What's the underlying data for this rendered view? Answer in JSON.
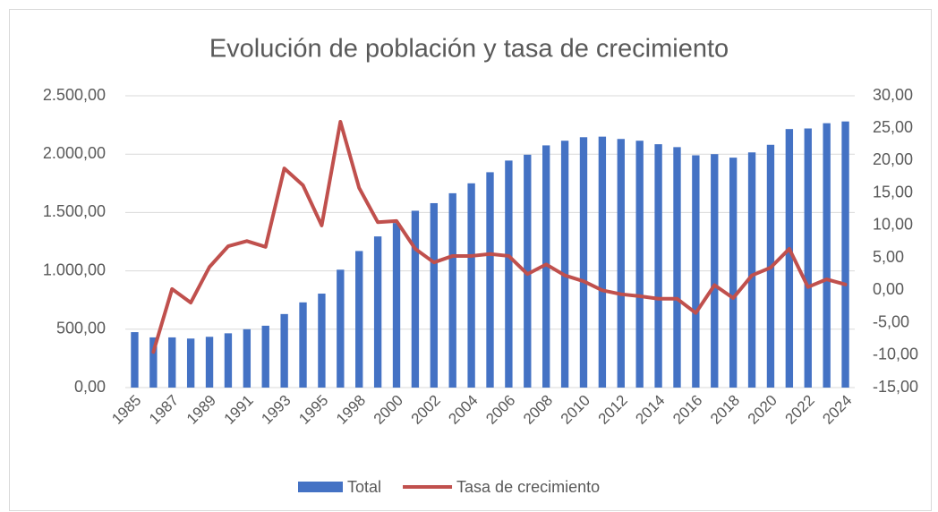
{
  "chart_data": {
    "type": "bar",
    "title": "Evolución de población y tasa de crecimiento",
    "categories": [
      "1985",
      null,
      "1987",
      null,
      "1989",
      null,
      "1991",
      null,
      "1993",
      null,
      "1995",
      null,
      "1998",
      null,
      "2000",
      null,
      "2002",
      null,
      "2004",
      null,
      "2006",
      null,
      "2008",
      null,
      "2010",
      null,
      "2012",
      null,
      "2014",
      null,
      "2016",
      null,
      "2018",
      null,
      "2020",
      null,
      "2022",
      null,
      "2024"
    ],
    "series": [
      {
        "name": "Total",
        "type": "bar",
        "color": "#4472c4",
        "values": [
          475,
          430,
          430,
          420,
          435,
          465,
          500,
          530,
          630,
          730,
          805,
          1010,
          1170,
          1295,
          1410,
          1515,
          1580,
          1665,
          1750,
          1845,
          1945,
          1995,
          2075,
          2115,
          2145,
          2150,
          2130,
          2115,
          2085,
          2060,
          1990,
          2000,
          1970,
          2015,
          2080,
          2215,
          2220,
          2265,
          2280
        ]
      },
      {
        "name": "Tasa de crecimiento",
        "type": "line",
        "color": "#c0504d",
        "axis": "y2",
        "values": [
          null,
          -9.5,
          0.2,
          -1.9,
          3.6,
          6.8,
          7.6,
          6.7,
          18.8,
          16.2,
          10.0,
          26.0,
          15.8,
          10.5,
          10.7,
          6.4,
          4.3,
          5.3,
          5.3,
          5.6,
          5.3,
          2.5,
          4.0,
          2.3,
          1.4,
          0.0,
          -0.6,
          -0.9,
          -1.3,
          -1.3,
          -3.5,
          0.8,
          -1.2,
          2.3,
          3.5,
          6.4,
          0.5,
          1.7,
          0.9
        ]
      }
    ],
    "ylim": [
      0,
      2500
    ],
    "yticks": [
      {
        "value": 0,
        "label": "0,00"
      },
      {
        "value": 500,
        "label": "500,00"
      },
      {
        "value": 1000,
        "label": "1.000,00"
      },
      {
        "value": 1500,
        "label": "1.500,00"
      },
      {
        "value": 2000,
        "label": "2.000,00"
      },
      {
        "value": 2500,
        "label": "2.500,00"
      }
    ],
    "y2lim": [
      -15,
      30
    ],
    "y2ticks": [
      {
        "value": -15,
        "label": "-15,00"
      },
      {
        "value": -10,
        "label": "-10,00"
      },
      {
        "value": -5,
        "label": "-5,00"
      },
      {
        "value": 0,
        "label": "0,00"
      },
      {
        "value": 5,
        "label": "5,00"
      },
      {
        "value": 10,
        "label": "10,00"
      },
      {
        "value": 15,
        "label": "15,00"
      },
      {
        "value": 20,
        "label": "20,00"
      },
      {
        "value": 25,
        "label": "25,00"
      },
      {
        "value": 30,
        "label": "30,00"
      }
    ],
    "legend": "bottom"
  }
}
